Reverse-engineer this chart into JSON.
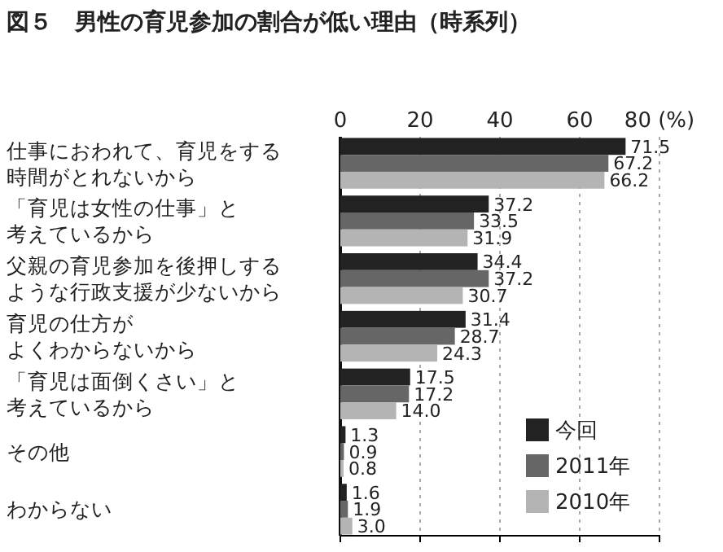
{
  "chart_data": {
    "type": "bar",
    "orientation": "horizontal",
    "title": "図５　男性の育児参加の割合が低い理由（時系列）",
    "categories": [
      "仕事におわれて、育児をする時間がとれないから",
      "「育児は女性の仕事」と考えているから",
      "父親の育児参加を後押しするような行政支援が少ないから",
      "育児の仕方がよくわからないから",
      "「育児は面倒くさい」と考えているから",
      "その他",
      "わからない"
    ],
    "series": [
      {
        "name": "今回",
        "color": "#222222",
        "values": [
          71.5,
          37.2,
          34.4,
          31.4,
          17.5,
          1.3,
          1.6
        ],
        "value_labels": [
          "71.5",
          "37.2",
          "34.4",
          "31.4",
          "17.5",
          "1.3",
          "1.6"
        ]
      },
      {
        "name": "2011年",
        "color": "#666666",
        "values": [
          67.2,
          33.5,
          37.2,
          28.7,
          17.2,
          0.9,
          1.9
        ],
        "value_labels": [
          "67.2",
          "33.5",
          "37.2",
          "28.7",
          "17.2",
          "0.9",
          "1.9"
        ]
      },
      {
        "name": "2010年",
        "color": "#b4b4b4",
        "values": [
          66.2,
          31.9,
          30.7,
          24.3,
          14.0,
          0.8,
          3.0
        ],
        "value_labels": [
          "66.2",
          "31.9",
          "30.7",
          "24.3",
          "14.0",
          "0.8",
          "3.0"
        ]
      }
    ],
    "xlim": [
      0,
      80
    ],
    "xticks": [
      0,
      20,
      40,
      60,
      {
        "value": 80,
        "label": "80 (%)"
      }
    ],
    "grid": "x",
    "legend": "bottom right"
  }
}
